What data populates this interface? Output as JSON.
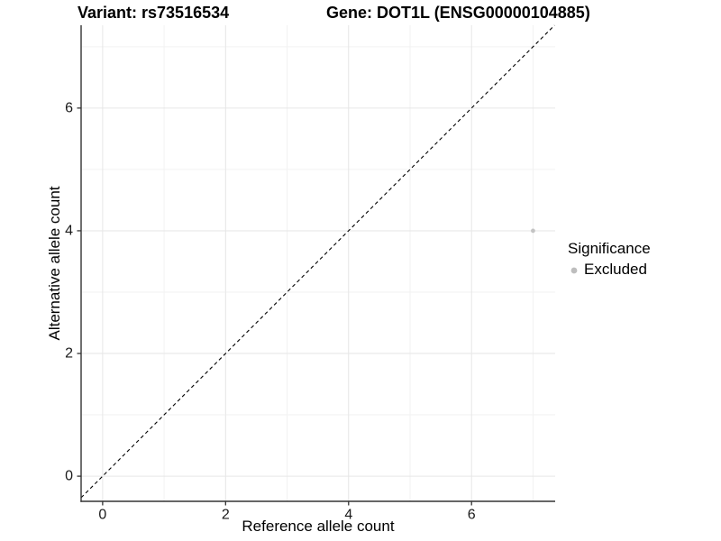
{
  "chart_data": {
    "type": "scatter",
    "title_left": "Variant: rs73516534",
    "title_right": "Gene: DOT1L (ENSG00000104885)",
    "xlabel": "Reference allele count",
    "ylabel": "Alternative allele count",
    "xlim": [
      -0.35,
      7.36
    ],
    "ylim": [
      -0.41,
      7.35
    ],
    "x_major_ticks": [
      0,
      2,
      4,
      6
    ],
    "y_major_ticks": [
      0,
      2,
      4,
      6
    ],
    "x_minor_ticks": [
      1,
      3,
      5,
      7
    ],
    "y_minor_ticks": [
      1,
      3,
      5,
      7
    ],
    "grid": true,
    "identity_line": {
      "slope": 1,
      "intercept": 0,
      "linetype": "dashed",
      "color": "#000000"
    },
    "points": [
      {
        "x": 7,
        "y": 4,
        "significance": "Excluded"
      }
    ],
    "legend": {
      "title": "Significance",
      "position": "right",
      "items": [
        {
          "label": "Excluded",
          "color": "#bdbdbd"
        }
      ]
    },
    "colors": {
      "point": "#c4c4c4",
      "grid_major": "#e6e6e6",
      "grid_minor": "#f2f2f2",
      "axis_line": "#333333",
      "tick_label": "#1a1a1a",
      "dashed_line": "#000000"
    }
  }
}
